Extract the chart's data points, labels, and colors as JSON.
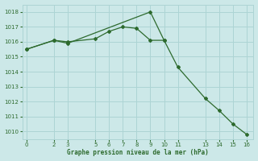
{
  "line1_x": [
    0,
    2,
    3,
    5,
    6,
    7,
    8,
    9,
    10
  ],
  "line1_y": [
    1015.5,
    1016.1,
    1016.0,
    1016.2,
    1016.7,
    1017.0,
    1016.9,
    1016.1,
    1016.1
  ],
  "line2_x": [
    0,
    2,
    3,
    9,
    10,
    11,
    13,
    14,
    15,
    16
  ],
  "line2_y": [
    1015.5,
    1016.1,
    1015.9,
    1018.0,
    1016.1,
    1014.3,
    1012.2,
    1011.4,
    1010.5,
    1009.8
  ],
  "color": "#2d6a2d",
  "bg_color": "#cce8e8",
  "grid_color": "#add4d4",
  "xlabel": "Graphe pression niveau de la mer (hPa)",
  "ylim_min": 1009.5,
  "ylim_max": 1018.5,
  "xlim_min": -0.3,
  "xlim_max": 16.5,
  "yticks": [
    1010,
    1011,
    1012,
    1013,
    1014,
    1015,
    1016,
    1017,
    1018
  ],
  "xticks": [
    0,
    2,
    3,
    5,
    6,
    7,
    8,
    9,
    10,
    11,
    13,
    14,
    15,
    16
  ]
}
